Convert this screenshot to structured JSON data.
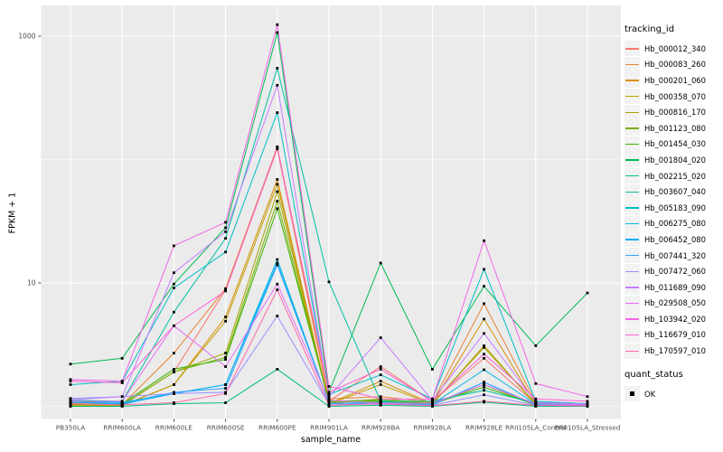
{
  "chart_data": {
    "type": "line",
    "title": "",
    "xlabel": "sample_name",
    "ylabel": "FPKM + 1",
    "y_scale": "log10",
    "y_ticks": [
      10,
      1000
    ],
    "y_minor_ticks": [
      1,
      100
    ],
    "ylim": [
      0.8,
      1800
    ],
    "grid": true,
    "legend_position": "right",
    "panel_bg": "#EBEBEB",
    "grid_color": "#FFFFFF",
    "point_color": "#000000",
    "axis_text_color": "#4D4D4D",
    "categories": [
      "PB350LA",
      "RRIM600LA",
      "RRIM600LE",
      "RRIM600SE",
      "RRIM600PE",
      "RRIM901LA",
      "RRIM928BA",
      "RRIM928LA",
      "RRIM928LE",
      "RRII105LA_Control",
      "RRII105LA_Stressed"
    ],
    "series": [
      {
        "name": "Hb_000012_340",
        "color": "#F8766D",
        "values": [
          1.05,
          1.02,
          1.9,
          8.8,
          122,
          1.1,
          2.1,
          1.1,
          2.45,
          1.05,
          1.02
        ]
      },
      {
        "name": "Hb_000083_260",
        "color": "#EA8331",
        "values": [
          1.04,
          1.03,
          2.7,
          9.0,
          127,
          1.15,
          1.2,
          1.08,
          6.8,
          1.08,
          1.03
        ]
      },
      {
        "name": "Hb_000201_060",
        "color": "#D89000",
        "values": [
          1.02,
          1.02,
          1.5,
          5.3,
          69,
          1.05,
          1.6,
          1.05,
          5.1,
          1.04,
          1.02
        ]
      },
      {
        "name": "Hb_000358_070",
        "color": "#C09B00",
        "values": [
          1.03,
          1.01,
          1.5,
          4.9,
          63,
          1.04,
          1.5,
          1.04,
          3.1,
          1.03,
          1.02
        ]
      },
      {
        "name": "Hb_000816_170",
        "color": "#A3A500",
        "values": [
          1.06,
          1.02,
          1.9,
          2.7,
          55,
          1.06,
          1.15,
          1.06,
          3.0,
          1.05,
          1.04
        ]
      },
      {
        "name": "Hb_001123_080",
        "color": "#7CAE00",
        "values": [
          1.04,
          1.03,
          1.9,
          2.5,
          46,
          1.08,
          1.1,
          1.03,
          1.5,
          1.02,
          1.03
        ]
      },
      {
        "name": "Hb_001454_030",
        "color": "#39B600",
        "values": [
          1.1,
          1.05,
          2.0,
          2.4,
          40,
          1.1,
          1.12,
          1.05,
          1.43,
          1.03,
          1.02
        ]
      },
      {
        "name": "Hb_001804_020",
        "color": "#00BB4E",
        "values": [
          2.2,
          2.45,
          9.8,
          28,
          1070,
          1.3,
          14.5,
          2.0,
          9.4,
          3.1,
          8.3
        ]
      },
      {
        "name": "Hb_002215_020",
        "color": "#00BF7D",
        "values": [
          1.0,
          1.0,
          1.05,
          1.07,
          2.0,
          1.0,
          1.02,
          1.0,
          1.08,
          1.0,
          1.0
        ]
      },
      {
        "name": "Hb_003607_040",
        "color": "#00C1A3",
        "values": [
          1.12,
          1.1,
          5.8,
          23,
          550,
          10.2,
          1.1,
          1.1,
          1.35,
          1.06,
          1.05
        ]
      },
      {
        "name": "Hb_005183_090",
        "color": "#00BFC4",
        "values": [
          1.5,
          1.6,
          9.1,
          17.8,
          240,
          1.25,
          1.8,
          1.15,
          12.9,
          1.1,
          1.05
        ]
      },
      {
        "name": "Hb_006275_080",
        "color": "#00BAE0",
        "values": [
          1.1,
          1.08,
          1.27,
          1.5,
          15.5,
          1.05,
          1.08,
          1.04,
          1.98,
          1.04,
          1.03
        ]
      },
      {
        "name": "Hb_006452_080",
        "color": "#00B0F6",
        "values": [
          1.08,
          1.04,
          1.27,
          1.5,
          14.5,
          1.06,
          1.05,
          1.03,
          1.57,
          1.03,
          1.02
        ]
      },
      {
        "name": "Hb_007441_320",
        "color": "#35A2FF",
        "values": [
          1.08,
          1.06,
          1.3,
          1.4,
          14,
          1.06,
          1.05,
          1.03,
          1.57,
          1.03,
          1.02
        ]
      },
      {
        "name": "Hb_007472_060",
        "color": "#9590FF",
        "values": [
          1.16,
          1.2,
          1.27,
          1.3,
          5.4,
          1.04,
          1.04,
          1.02,
          1.24,
          1.02,
          1.01
        ]
      },
      {
        "name": "Hb_011689_090",
        "color": "#C77CFF",
        "values": [
          1.13,
          1.2,
          12.1,
          26,
          400,
          1.2,
          3.6,
          1.12,
          3.9,
          1.08,
          1.04
        ]
      },
      {
        "name": "Hb_029508_050",
        "color": "#E36EF6",
        "values": [
          1.1,
          1.1,
          4.5,
          2.1,
          9.8,
          1.12,
          1.06,
          1.06,
          1.5,
          1.05,
          1.03
        ]
      },
      {
        "name": "Hb_103942_020",
        "color": "#F365E7",
        "values": [
          1.65,
          1.6,
          20,
          31,
          1240,
          1.45,
          1.15,
          1.14,
          22,
          1.53,
          1.2
        ]
      },
      {
        "name": "Hb_116679_010",
        "color": "#FC61D4",
        "values": [
          1.6,
          1.55,
          4.5,
          8.6,
          125,
          1.3,
          2.0,
          1.1,
          2.65,
          1.15,
          1.1
        ]
      },
      {
        "name": "Hb_170597_010",
        "color": "#FF65AC",
        "values": [
          1.05,
          1.03,
          1.07,
          1.27,
          8.8,
          1.02,
          1.05,
          1.01,
          1.1,
          1.02,
          1.01
        ]
      }
    ],
    "legend": {
      "tracking_title": "tracking_id",
      "quant_title": "quant_status",
      "quant_items": [
        {
          "label": "OK"
        }
      ]
    }
  }
}
